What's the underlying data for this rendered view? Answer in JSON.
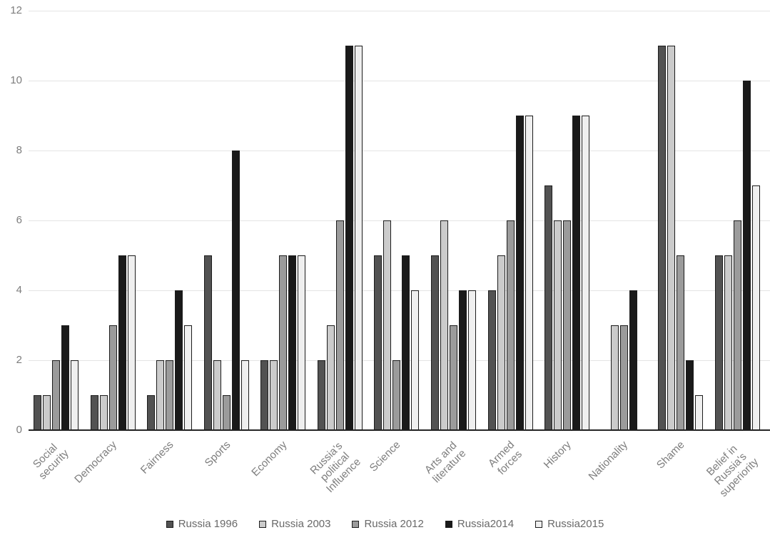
{
  "chart_data": {
    "type": "bar",
    "title": "",
    "xlabel": "",
    "ylabel": "",
    "ylim": [
      0,
      12
    ],
    "yticks": [
      "0",
      "2",
      "4",
      "6",
      "8",
      "10",
      "12"
    ],
    "grid": true,
    "legend_position": "bottom",
    "categories": [
      "Social security",
      "Democracy",
      "Fairness",
      "Sports",
      "Economy",
      "Russia's political\nInfluence",
      "Science",
      "Arts and\nliterature",
      "Armed forces",
      "History",
      "Nationality",
      "Shame",
      "Belief in Russia's\nsuperiority"
    ],
    "series": [
      {
        "name": "Russia 1996",
        "color": "#525252",
        "values": [
          1,
          1,
          1,
          5,
          2,
          2,
          5,
          5,
          4,
          7,
          0,
          11,
          5
        ]
      },
      {
        "name": "Russia 2003",
        "color": "#cbcbcb",
        "values": [
          1,
          1,
          2,
          2,
          2,
          3,
          6,
          6,
          5,
          6,
          3,
          11,
          5
        ]
      },
      {
        "name": "Russia 2012",
        "color": "#9b9b9b",
        "values": [
          2,
          3,
          2,
          1,
          5,
          6,
          2,
          3,
          6,
          6,
          3,
          5,
          6
        ]
      },
      {
        "name": "Russia2014",
        "color": "#1a1a1a",
        "values": [
          3,
          5,
          4,
          8,
          5,
          11,
          5,
          4,
          9,
          9,
          4,
          2,
          10
        ]
      },
      {
        "name": "Russia2015",
        "color": "#efefef",
        "values": [
          2,
          5,
          3,
          2,
          5,
          11,
          4,
          4,
          9,
          9,
          0,
          1,
          7
        ]
      }
    ],
    "colors": {
      "background": "#ffffff",
      "gridline": "#e4e4e4",
      "axis_line": "#262626",
      "bar_outline": "#1c1c1c",
      "tick_label": "#7d7d7d",
      "legend_label": "#696969"
    }
  }
}
